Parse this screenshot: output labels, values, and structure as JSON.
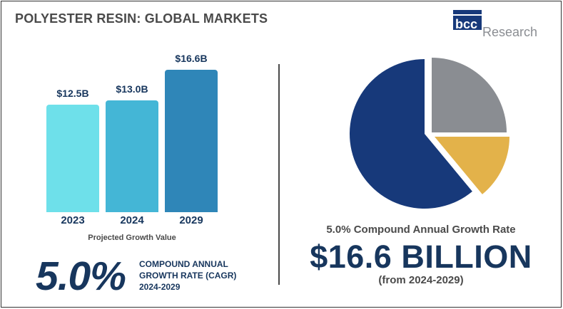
{
  "title": "POLYESTER RESIN: GLOBAL MARKETS",
  "logo": {
    "text_left": "bcc",
    "text_right": "Research"
  },
  "chart_data": [
    {
      "type": "bar",
      "categories": [
        "2023",
        "2024",
        "2029"
      ],
      "values": [
        12.5,
        13.0,
        16.6
      ],
      "data_labels": [
        "$12.5B",
        "$13.0B",
        "$16.6B"
      ],
      "title": "",
      "xlabel": "Projected Growth Value",
      "ylabel": "",
      "grid": false,
      "colors": [
        "#6ee0ea",
        "#44b6d6",
        "#2f86b8"
      ]
    },
    {
      "type": "pie",
      "values": [
        61,
        25,
        14
      ],
      "colors": [
        "#17397a",
        "#8a8d92",
        "#e3b24a"
      ]
    }
  ],
  "cagr_block": {
    "value": "5.0%",
    "line1": "COMPOUND ANNUAL",
    "line2": "GROWTH RATE (CAGR)",
    "line3": "2024-2029"
  },
  "right_panel": {
    "rate": "5.0% Compound Annual Growth Rate",
    "total": "$16.6 BILLION",
    "period": "(from 2024-2029)"
  }
}
